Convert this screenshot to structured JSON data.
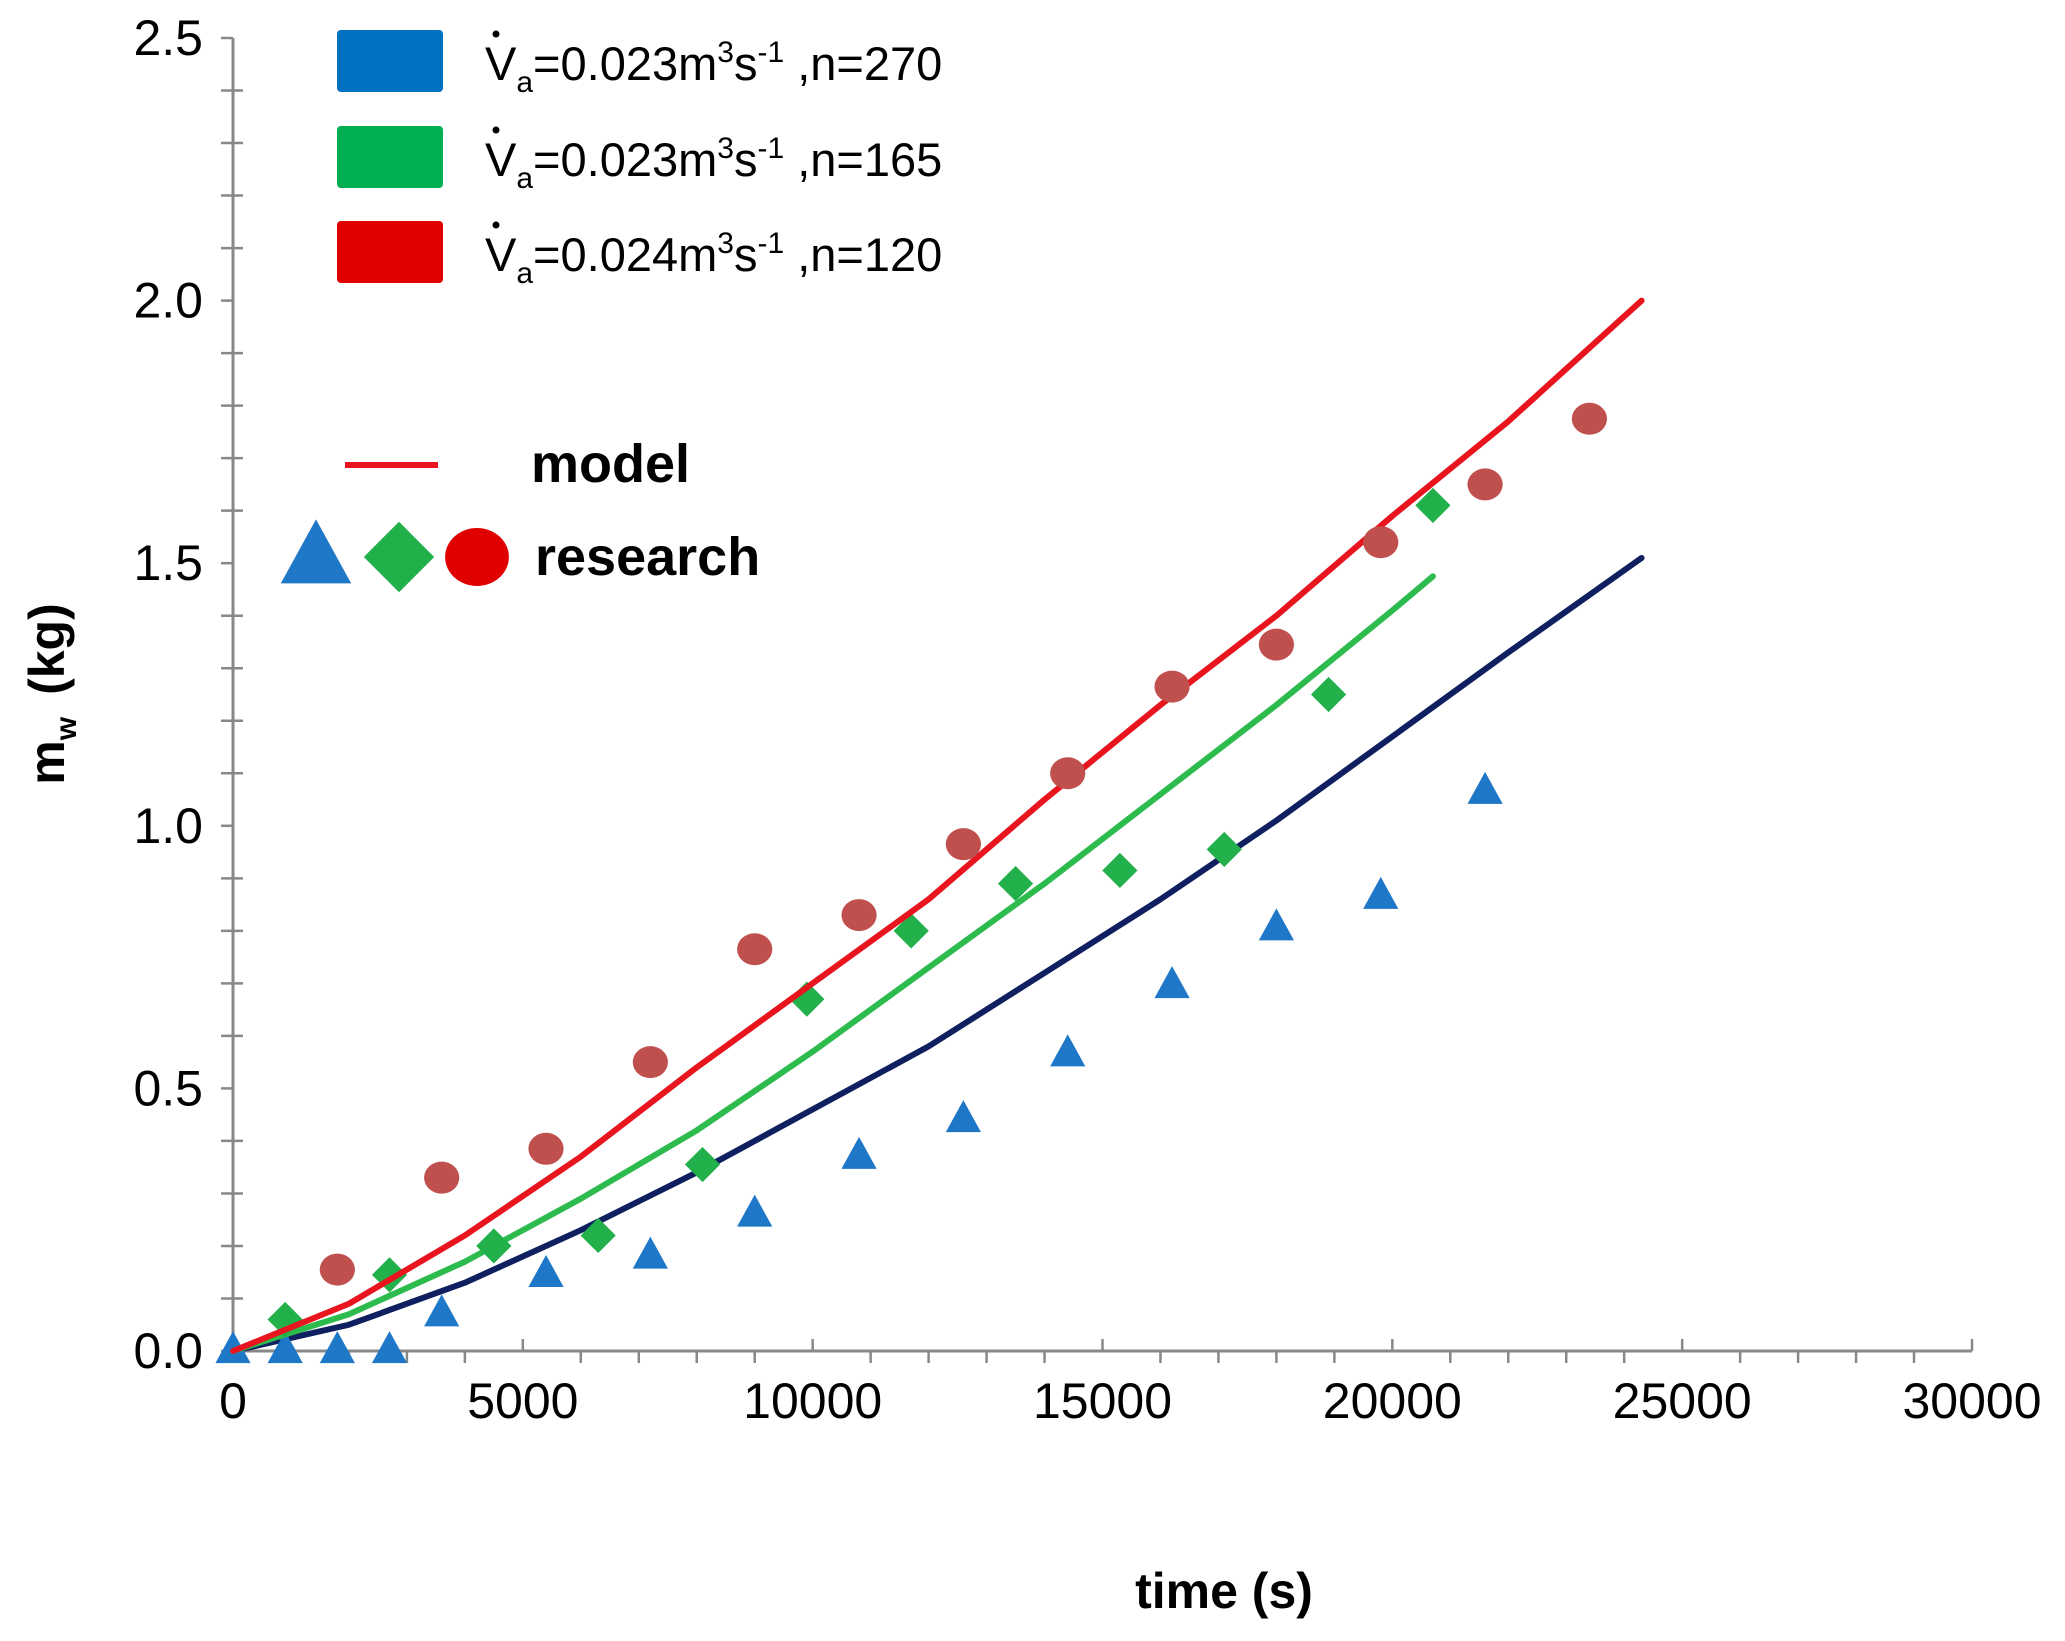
{
  "chart_data": {
    "type": "scatter",
    "title": "",
    "xlabel": "time (s)",
    "ylabel_main": "m",
    "ylabel_sub": "w",
    "ylabel_unit": "(kg)",
    "xlim": [
      0,
      30000
    ],
    "ylim": [
      0,
      2.5
    ],
    "x_ticks": [
      0,
      5000,
      10000,
      15000,
      20000,
      25000,
      30000
    ],
    "x_tick_labels": [
      "0",
      "5000",
      "10000",
      "15000",
      "20000",
      "25000",
      "30000"
    ],
    "y_ticks": [
      0,
      0.5,
      1.0,
      1.5,
      2.0,
      2.5
    ],
    "y_tick_labels": [
      "0.0",
      "0.5",
      "1.0",
      "1.5",
      "2.0",
      "2.5"
    ],
    "grid": false,
    "legend_position": "top-left",
    "series": [
      {
        "name": "Va=0.023m3s-1 ,n=270",
        "label_v": "V",
        "label_v_sub": "a",
        "label_mid": "=0.023m",
        "label_sup": "3",
        "label_rest": "s",
        "label_rest_sup": "-1",
        "label_n": " ,n=270",
        "swatch_color": "#0070C0",
        "model_color": "#0F1F5F",
        "marker_color": "#1F77C8",
        "marker": "triangle",
        "model_x": [
          0,
          2000,
          4000,
          6000,
          8000,
          10000,
          12000,
          14000,
          16000,
          18000,
          20000,
          22000,
          24300
        ],
        "model_y": [
          0,
          0.05,
          0.13,
          0.23,
          0.34,
          0.46,
          0.58,
          0.72,
          0.86,
          1.01,
          1.17,
          1.33,
          1.51
        ],
        "points_x": [
          0,
          900,
          1800,
          2700,
          3600,
          5400,
          7200,
          9000,
          10800,
          12600,
          14400,
          16200,
          18000,
          19800,
          21600
        ],
        "points_y": [
          0,
          0,
          0,
          0,
          0.07,
          0.145,
          0.18,
          0.26,
          0.37,
          0.44,
          0.565,
          0.695,
          0.805,
          0.865,
          1.065
        ]
      },
      {
        "name": "Va=0.023m3s-1 ,n=165",
        "label_v": "V",
        "label_v_sub": "a",
        "label_mid": "=0.023m",
        "label_sup": "3",
        "label_rest": "s",
        "label_rest_sup": "-1",
        "label_n": " ,n=165",
        "swatch_color": "#00B050",
        "model_color": "#2DBB4E",
        "marker_color": "#22B04B",
        "marker": "diamond",
        "model_x": [
          0,
          2000,
          4000,
          6000,
          8000,
          10000,
          12000,
          14000,
          16000,
          18000,
          20000,
          20700
        ],
        "model_y": [
          0,
          0.07,
          0.17,
          0.29,
          0.42,
          0.57,
          0.73,
          0.89,
          1.06,
          1.23,
          1.41,
          1.475
        ],
        "points_x": [
          900,
          2700,
          4500,
          6300,
          8100,
          9900,
          11700,
          13500,
          15300,
          17100,
          18900,
          20700
        ],
        "points_y": [
          0.06,
          0.145,
          0.2,
          0.22,
          0.355,
          0.67,
          0.8,
          0.89,
          0.915,
          0.955,
          1.25,
          1.61
        ]
      },
      {
        "name": "Va=0.024m3s-1 ,n=120",
        "label_v": "V",
        "label_v_sub": "a",
        "label_mid": "=0.024m",
        "label_sup": "3",
        "label_rest": "s",
        "label_rest_sup": "-1",
        "label_n": " ,n=120",
        "swatch_color": "#E00000",
        "model_color": "#E8141E",
        "marker_color": "#C0504D",
        "marker": "circle",
        "model_x": [
          0,
          2000,
          4000,
          6000,
          8000,
          10000,
          12000,
          14000,
          16000,
          18000,
          20000,
          22000,
          24300
        ],
        "model_y": [
          0,
          0.09,
          0.22,
          0.37,
          0.54,
          0.7,
          0.86,
          1.05,
          1.23,
          1.4,
          1.59,
          1.77,
          2.0
        ],
        "points_x": [
          1800,
          3600,
          5400,
          7200,
          9000,
          10800,
          12600,
          14400,
          16200,
          18000,
          19800,
          21600,
          23400
        ],
        "points_y": [
          0.155,
          0.33,
          0.385,
          0.55,
          0.765,
          0.83,
          0.965,
          1.1,
          1.265,
          1.345,
          1.54,
          1.65,
          1.775
        ]
      }
    ],
    "legend_key_model": "model",
    "legend_key_research": "research",
    "legend_key_model_color": "#E8141E",
    "legend_key_markers": [
      {
        "marker": "triangle",
        "color": "#1F77C8"
      },
      {
        "marker": "diamond",
        "color": "#22B04B"
      },
      {
        "marker": "circle",
        "color": "#E00000"
      }
    ]
  }
}
